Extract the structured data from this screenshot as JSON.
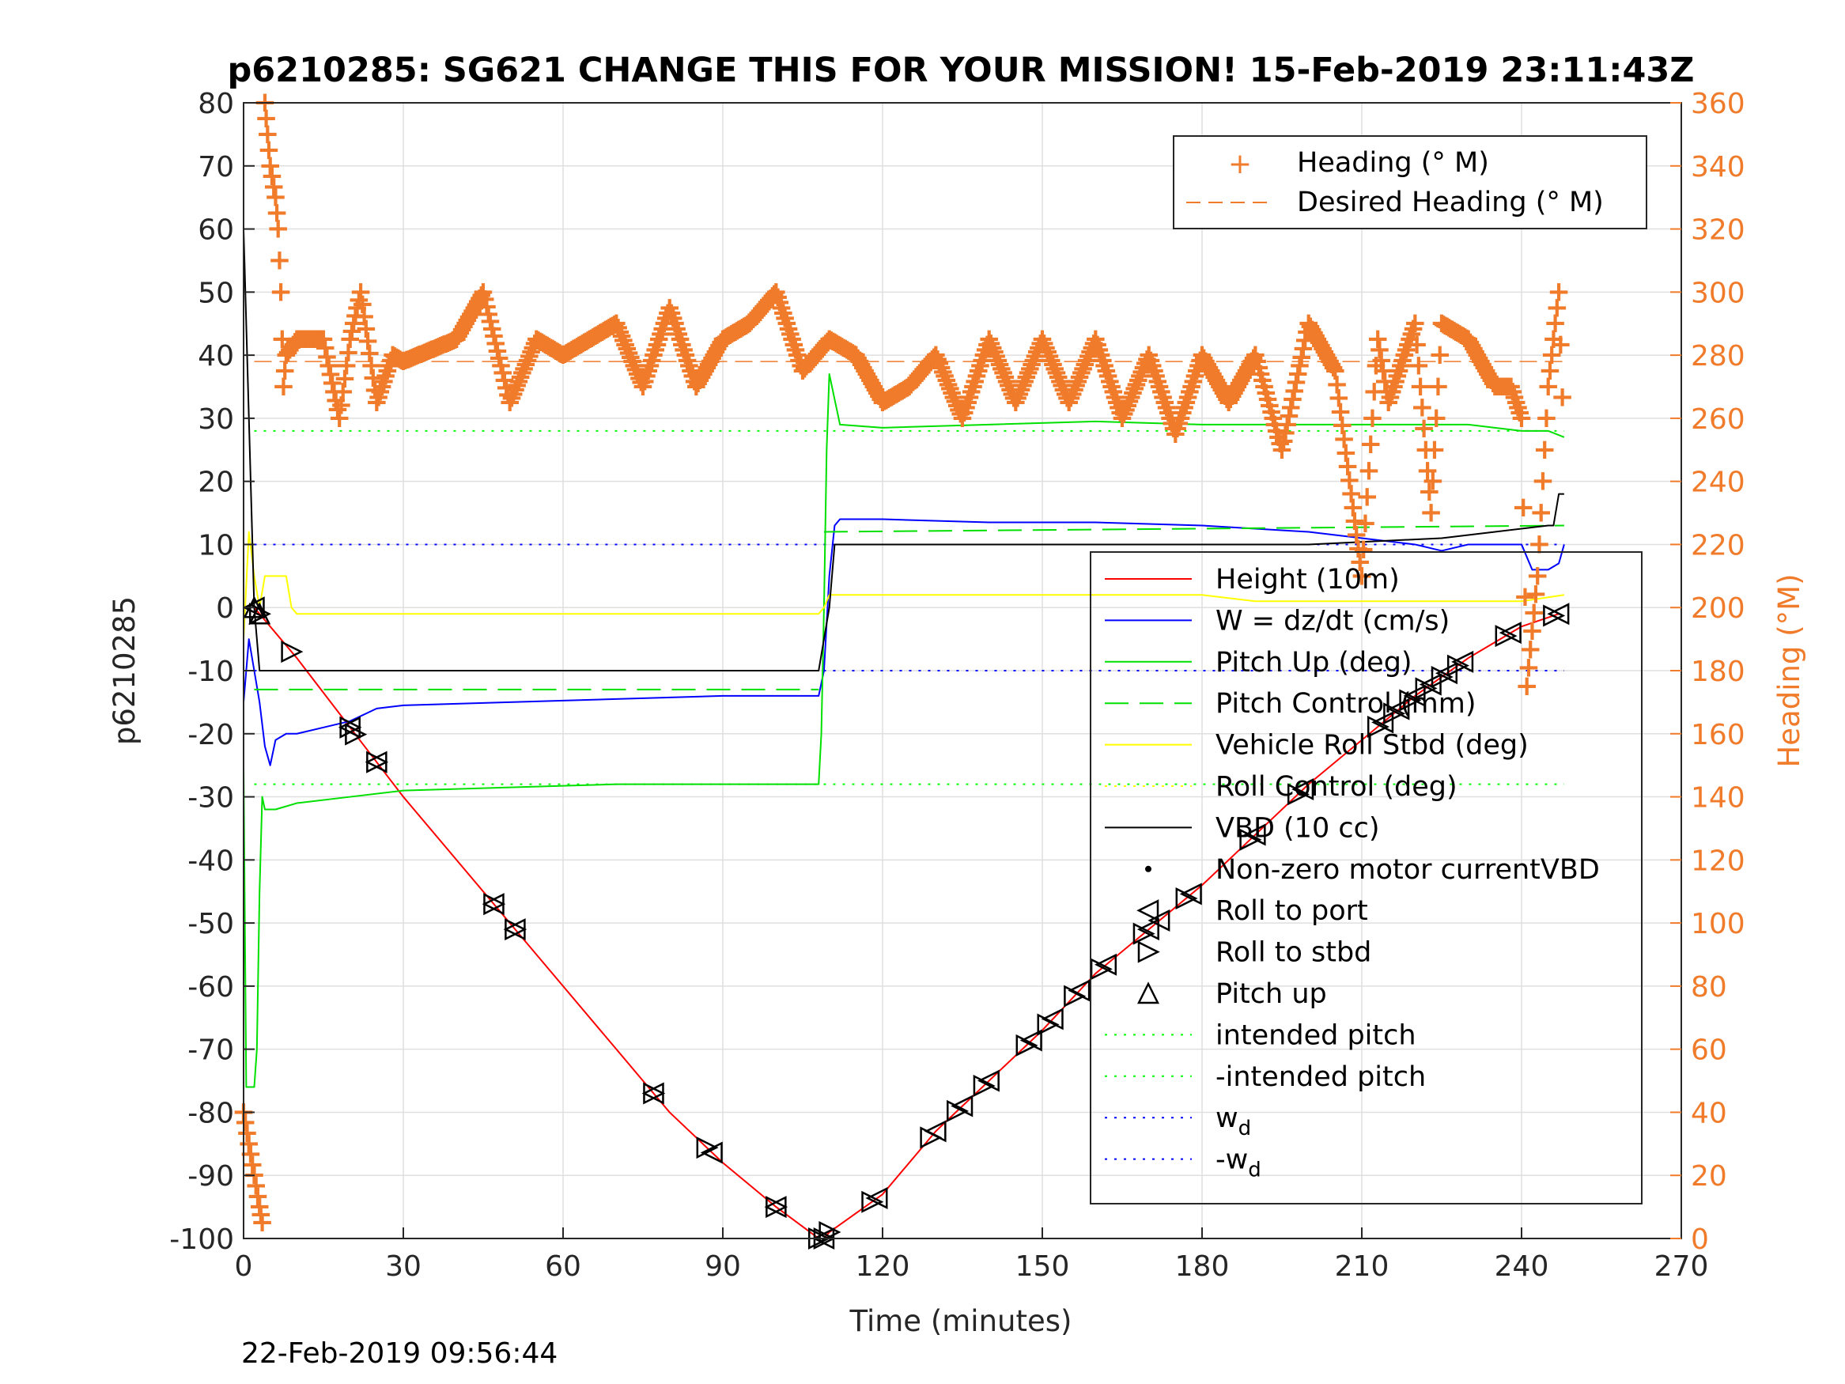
{
  "chart_data": {
    "type": "line",
    "title": "p6210285: SG621 CHANGE THIS FOR YOUR MISSION! 15-Feb-2019 23:11:43Z",
    "xlabel": "Time (minutes)",
    "ylabel_left": "p6210285",
    "ylabel_right": "Heading (°M)",
    "footer": "22-Feb-2019 09:56:44",
    "xlim": [
      0,
      270
    ],
    "ylim_left": [
      -100,
      80
    ],
    "ylim_right": [
      0,
      360
    ],
    "x_ticks": [
      0,
      30,
      60,
      90,
      120,
      150,
      180,
      210,
      240,
      270
    ],
    "y_ticks_left": [
      80,
      70,
      60,
      50,
      40,
      30,
      20,
      10,
      0,
      -10,
      -20,
      -30,
      -40,
      -50,
      -60,
      -70,
      -80,
      -90,
      -100
    ],
    "y_ticks_right": [
      360,
      340,
      320,
      300,
      280,
      260,
      240,
      220,
      200,
      180,
      160,
      140,
      120,
      100,
      80,
      60,
      40,
      20,
      0
    ],
    "grid": true,
    "legend_right_axis": {
      "placement": "top-right",
      "entries": [
        "Heading (° M)",
        "Desired Heading (° M)"
      ]
    },
    "legend_left_axis": {
      "placement": "bottom-right",
      "entries": [
        {
          "text": "Height (10m)"
        },
        {
          "text": "W = dz/dt (cm/s)"
        },
        {
          "text": "Pitch Up (deg)"
        },
        {
          "text": "Pitch Control (mm)"
        },
        {
          "text": "Vehicle Roll Stbd (deg)"
        },
        {
          "text": "Roll Control (deg)"
        },
        {
          "text": "VBD (10 cc)"
        },
        {
          "text": "Non-zero motor currentVBD"
        },
        {
          "text": "Roll to port"
        },
        {
          "text": "Roll to stbd"
        },
        {
          "text": "Pitch up"
        },
        {
          "text": "intended pitch"
        },
        {
          "text": "-intended pitch"
        },
        {
          "text": "w",
          "sub": "d"
        },
        {
          "text": "-w",
          "sub": "d"
        }
      ]
    },
    "colors": {
      "height": "#ff0000",
      "w": "#0000ff",
      "pitch": "#00e000",
      "pitch_control": "#00e000",
      "roll": "#ffff00",
      "vbd": "#000000",
      "heading": "#f07b2a",
      "intended_pitch": "#00ff00",
      "wd": "#0000ff"
    },
    "series": [
      {
        "key": "height",
        "axis": "left",
        "x": [
          2,
          10,
          20,
          30,
          40,
          50,
          60,
          70,
          80,
          90,
          100,
          108,
          109,
          110,
          120,
          130,
          140,
          150,
          160,
          170,
          180,
          190,
          200,
          210,
          220,
          230,
          240,
          247
        ],
        "y": [
          0,
          -8,
          -19,
          -30,
          -40,
          -50,
          -60,
          -70,
          -80,
          -88,
          -95,
          -100,
          -100,
          -99,
          -93,
          -83,
          -75,
          -67,
          -58,
          -51,
          -44,
          -36,
          -28,
          -21,
          -14,
          -8,
          -3,
          -1
        ]
      },
      {
        "key": "w",
        "axis": "left",
        "x": [
          0,
          1,
          2,
          3,
          4,
          5,
          6,
          8,
          10,
          15,
          20,
          25,
          30,
          50,
          70,
          90,
          108,
          109,
          110,
          111,
          112,
          120,
          140,
          160,
          180,
          200,
          220,
          225,
          230,
          240,
          242,
          245,
          247,
          248
        ],
        "y": [
          -15,
          -5,
          -10,
          -15,
          -22,
          -25,
          -21,
          -20,
          -20,
          -19,
          -18,
          -16,
          -15.5,
          -15,
          -14.5,
          -14,
          -14,
          -10,
          5,
          13,
          14,
          14,
          13.5,
          13.5,
          13,
          12,
          10,
          9,
          10,
          10,
          6,
          6,
          7,
          10
        ]
      },
      {
        "key": "pitch",
        "axis": "left",
        "x": [
          0,
          0.5,
          1,
          2,
          2.5,
          3,
          3.5,
          4,
          6,
          10,
          20,
          30,
          50,
          70,
          90,
          108,
          108.5,
          109,
          109.5,
          110,
          112,
          120,
          140,
          160,
          180,
          200,
          220,
          230,
          240,
          245,
          248
        ],
        "y": [
          -25,
          -76,
          -76,
          -76,
          -70,
          -45,
          -30,
          -32,
          -32,
          -31,
          -30,
          -29,
          -28.5,
          -28,
          -28,
          -28,
          -20,
          0,
          25,
          37,
          29,
          28.5,
          29,
          29.5,
          29,
          29,
          29,
          29,
          28,
          28,
          27
        ]
      },
      {
        "key": "pitch_control",
        "axis": "left",
        "x": [
          2,
          108,
          109,
          248
        ],
        "y": [
          -13,
          -13,
          12,
          13
        ]
      },
      {
        "key": "roll",
        "axis": "left",
        "x": [
          0,
          1,
          2,
          3,
          4,
          6,
          8,
          9,
          10,
          20,
          30,
          40,
          50,
          60,
          70,
          80,
          90,
          100,
          108,
          109,
          110,
          120,
          130,
          140,
          150,
          160,
          170,
          180,
          190,
          200,
          210,
          220,
          230,
          240,
          248
        ],
        "y": [
          -5,
          12,
          5,
          0,
          5,
          5,
          5,
          0,
          -1,
          -1,
          -1,
          -1,
          -1,
          -1,
          -1,
          -1,
          -1,
          -1,
          -1,
          0,
          2,
          2,
          2,
          2,
          2,
          2,
          2,
          2,
          1,
          1,
          1,
          1,
          1,
          1,
          2
        ]
      },
      {
        "key": "vbd",
        "axis": "left",
        "x": [
          0,
          2,
          3,
          108,
          110,
          111,
          200,
          225,
          235,
          245,
          246,
          247,
          248
        ],
        "y": [
          60,
          0,
          -10,
          -10,
          0,
          10,
          10,
          11,
          12,
          13,
          13,
          18,
          18
        ]
      },
      {
        "key": "heading",
        "axis": "right",
        "x": [
          0,
          1,
          2,
          3,
          3.5,
          4,
          4.5,
          5,
          6,
          6.5,
          7,
          7.5,
          8,
          10,
          15,
          18,
          20,
          22,
          25,
          28,
          30,
          40,
          45,
          50,
          55,
          60,
          70,
          75,
          80,
          85,
          90,
          95,
          100,
          105,
          110,
          115,
          120,
          125,
          130,
          135,
          140,
          145,
          150,
          155,
          160,
          165,
          170,
          175,
          180,
          185,
          190,
          195,
          200,
          205,
          210,
          213,
          215,
          220,
          223,
          225,
          230,
          235,
          238,
          240,
          241,
          243,
          245,
          247,
          248
        ],
        "y": [
          40,
          30,
          20,
          10,
          5,
          360,
          350,
          340,
          330,
          320,
          300,
          270,
          280,
          285,
          285,
          260,
          285,
          300,
          265,
          280,
          278,
          285,
          300,
          265,
          285,
          280,
          290,
          270,
          295,
          270,
          285,
          290,
          300,
          275,
          285,
          280,
          265,
          270,
          280,
          260,
          285,
          265,
          285,
          265,
          285,
          260,
          280,
          255,
          280,
          265,
          280,
          250,
          290,
          275,
          210,
          285,
          265,
          290,
          230,
          290,
          285,
          270,
          270,
          260,
          175,
          210,
          270,
          300,
          250
        ]
      }
    ],
    "desired_heading": 278,
    "intended_pitch": 28,
    "wd": 10,
    "markers": {
      "pitch_up_x": [
        2,
        3
      ],
      "roll_to_stbd_x": [
        3,
        9,
        20,
        21,
        25,
        47,
        51,
        77,
        87,
        100,
        108,
        109,
        110,
        118,
        129,
        134,
        139,
        147,
        151,
        156,
        161,
        169,
        177,
        189,
        198,
        213,
        216,
        219,
        222,
        225,
        228,
        237,
        246
      ],
      "roll_to_port_x": [
        2,
        20,
        25,
        47,
        51,
        77,
        88,
        100,
        109,
        119,
        130,
        135,
        140,
        148,
        152,
        157,
        162,
        170,
        172,
        178,
        190,
        199,
        214,
        217,
        220,
        223,
        226,
        229,
        238,
        247
      ]
    }
  }
}
